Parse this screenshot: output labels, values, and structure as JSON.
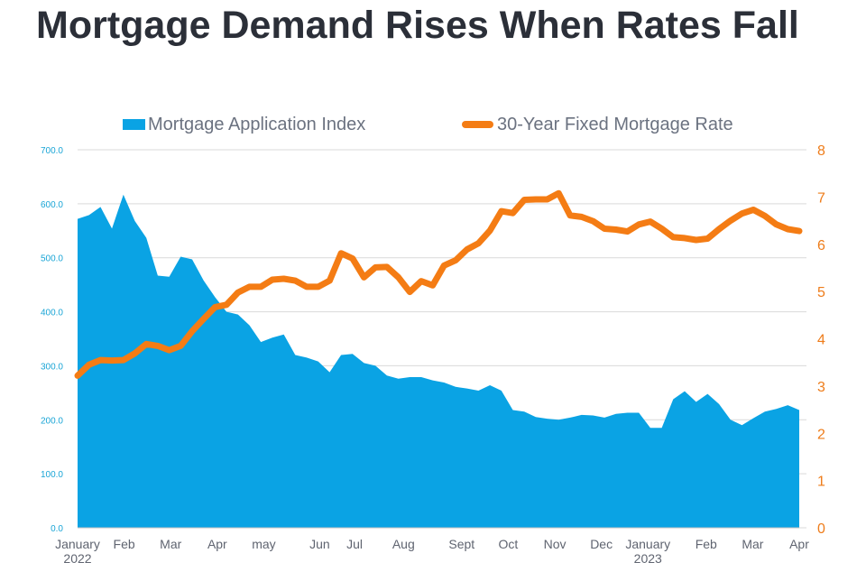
{
  "title": "Mortgage Demand Rises When Rates Fall",
  "colors": {
    "area": "#0aa3e4",
    "line": "#f47c14",
    "grid": "#d9d9d9",
    "left_axis_text": "#1aa5d6",
    "right_axis_text": "#ee7c1a",
    "legend_text": "#6b7280",
    "x_text": "#5f6470",
    "title": "#2b2f38"
  },
  "chart_data": {
    "type": "area+line",
    "title": "Mortgage Demand Rises When Rates Fall",
    "legend": [
      {
        "label": "Mortgage Application Index",
        "marker": "area"
      },
      {
        "label": "30-Year Fixed Mortgage Rate",
        "marker": "line"
      }
    ],
    "legend_position": "top-center",
    "x_label_rows": [
      [
        "January",
        "2022"
      ],
      [
        "Feb"
      ],
      [
        "Mar"
      ],
      [
        "Apr"
      ],
      [
        "may"
      ],
      [
        "Jun"
      ],
      [
        "Jul"
      ],
      [
        "Aug"
      ],
      [
        "Sept"
      ],
      [
        "Oct"
      ],
      [
        "Nov"
      ],
      [
        "Dec"
      ],
      [
        "January",
        "2023"
      ],
      [
        "Feb"
      ],
      [
        "Mar"
      ],
      [
        "Apr"
      ]
    ],
    "x_label_positions": [
      0,
      4,
      8,
      12,
      16,
      20.8,
      23.8,
      28,
      33,
      37,
      41,
      45,
      49,
      54,
      58,
      62
    ],
    "x_range": [
      0,
      62
    ],
    "y_left": {
      "min": 0,
      "max": 700,
      "ticks": [
        "0.0",
        "100.0",
        "200.0",
        "300.0",
        "400.0",
        "500.0",
        "600.0",
        "700.0"
      ]
    },
    "y_right": {
      "min": 0,
      "max": 8,
      "ticks": [
        "0",
        "1",
        "2",
        "3",
        "4",
        "5",
        "6",
        "7",
        "8"
      ]
    },
    "grid": true,
    "series": [
      {
        "name": "Mortgage Application Index",
        "type": "area",
        "axis": "left",
        "values": [
          572,
          579,
          594,
          554,
          617,
          568,
          537,
          467,
          465,
          502,
          497,
          458,
          427,
          400,
          395,
          375,
          344,
          352,
          358,
          320,
          315,
          308,
          288,
          320,
          322,
          305,
          300,
          282,
          276,
          279,
          279,
          273,
          269,
          261,
          258,
          254,
          264,
          254,
          218,
          215,
          205,
          202,
          200,
          204,
          209,
          208,
          204,
          211,
          213,
          213,
          185,
          185,
          238,
          253,
          233,
          248,
          229,
          200,
          190,
          203,
          215,
          220,
          227,
          218
        ]
      },
      {
        "name": "30-Year Fixed Mortgage Rate",
        "type": "line",
        "axis": "right",
        "values": [
          3.22,
          3.45,
          3.55,
          3.54,
          3.55,
          3.69,
          3.89,
          3.85,
          3.76,
          3.85,
          4.16,
          4.42,
          4.67,
          4.72,
          4.98,
          5.1,
          5.1,
          5.25,
          5.27,
          5.23,
          5.1,
          5.1,
          5.23,
          5.81,
          5.7,
          5.3,
          5.51,
          5.52,
          5.3,
          4.99,
          5.22,
          5.13,
          5.55,
          5.66,
          5.89,
          6.02,
          6.29,
          6.7,
          6.66,
          6.94,
          6.95,
          6.95,
          7.08,
          6.61,
          6.58,
          6.49,
          6.33,
          6.31,
          6.27,
          6.42,
          6.48,
          6.33,
          6.15,
          6.13,
          6.09,
          6.12,
          6.32,
          6.5,
          6.65,
          6.73,
          6.6,
          6.42,
          6.32,
          6.28
        ]
      }
    ]
  }
}
